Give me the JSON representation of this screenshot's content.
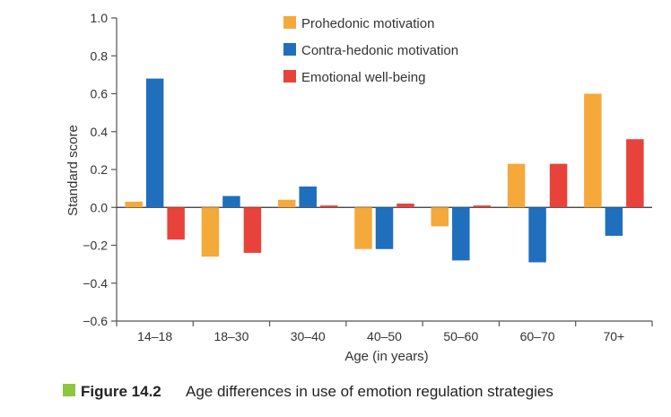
{
  "chart_data": {
    "type": "bar",
    "categories": [
      "14–18",
      "18–30",
      "30–40",
      "40–50",
      "50–60",
      "60–70",
      "70+"
    ],
    "series": [
      {
        "name": "Prohedonic motivation",
        "color": "#f5a93b",
        "values": [
          0.03,
          -0.26,
          0.04,
          -0.22,
          -0.1,
          0.23,
          0.6
        ]
      },
      {
        "name": "Contra-hedonic motivation",
        "color": "#1f6fbd",
        "values": [
          0.68,
          0.06,
          0.11,
          -0.22,
          -0.28,
          -0.29,
          -0.15
        ]
      },
      {
        "name": "Emotional well-being",
        "color": "#e8433a",
        "values": [
          -0.17,
          -0.24,
          0.01,
          0.02,
          0.01,
          0.23,
          0.36
        ]
      }
    ],
    "yticks": [
      "1.0",
      "0.8",
      "0.6",
      "0.4",
      "0.2",
      "0.0",
      "−0.2",
      "−0.4",
      "−0.6"
    ],
    "ylim": [
      -0.6,
      1.0
    ],
    "ylabel": "Standard score",
    "xlabel": "Age (in years)",
    "legend_position": "top-center",
    "grid": false
  },
  "caption": {
    "label": "Figure 14.2",
    "text": "Age differences in use of emotion regulation strategies",
    "marker_color": "#8dc63f"
  }
}
